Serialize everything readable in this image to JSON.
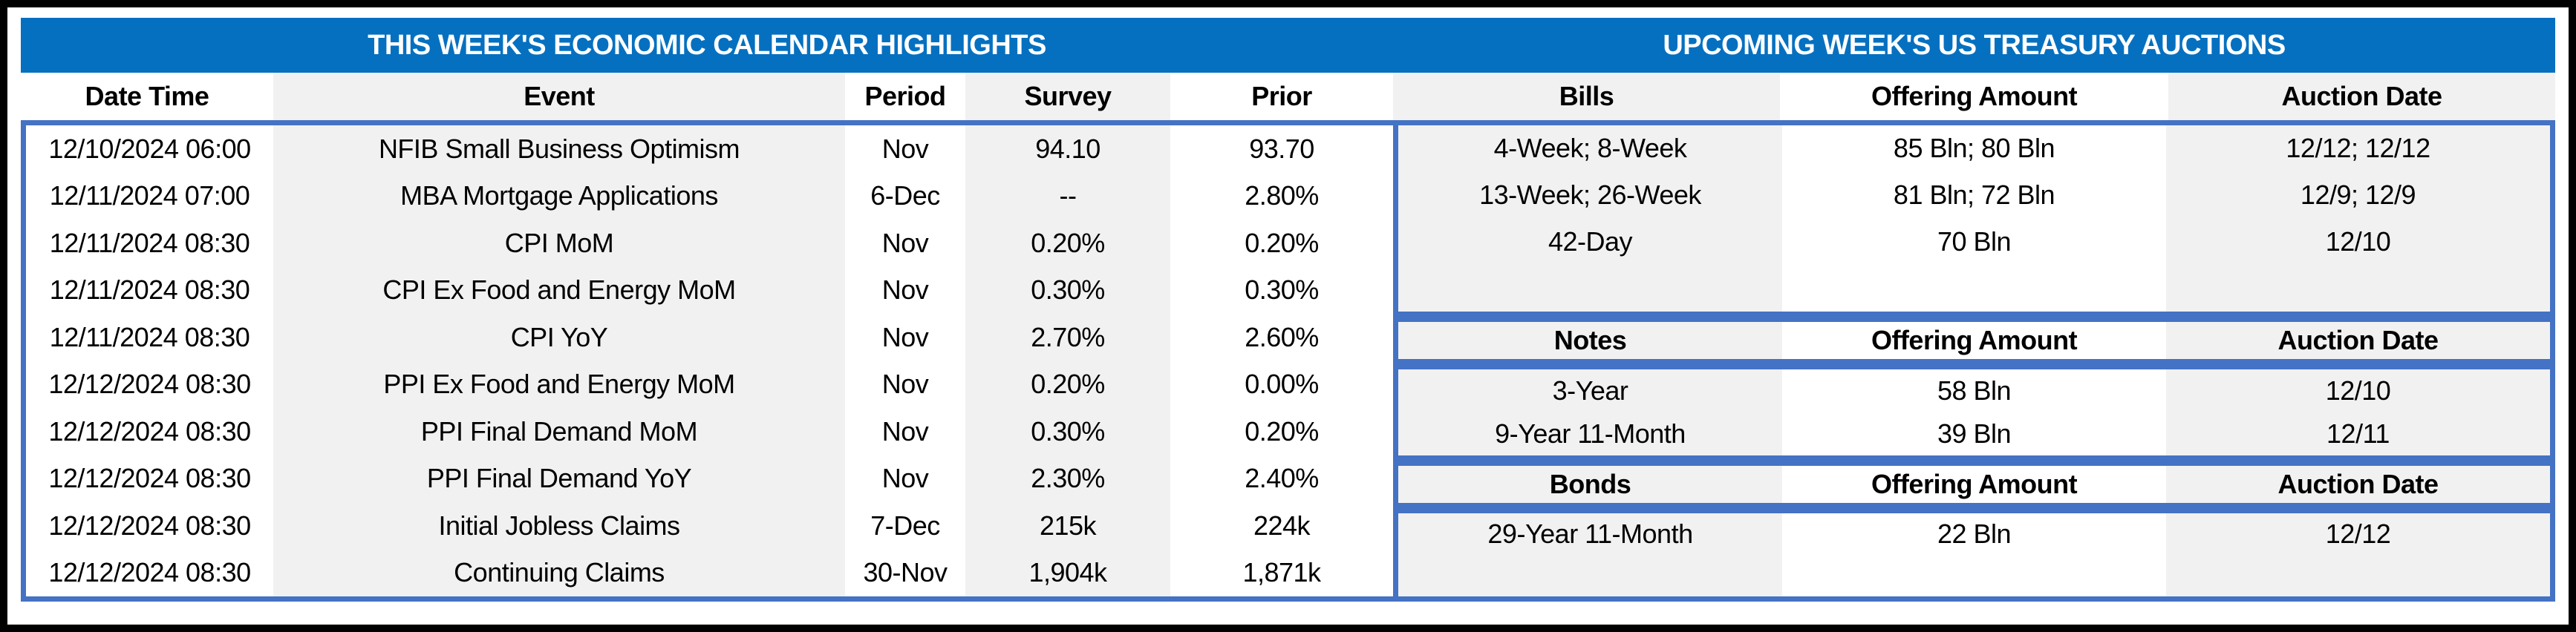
{
  "calendar": {
    "title": "THIS WEEK'S ECONOMIC CALENDAR HIGHLIGHTS",
    "columns": [
      "Date Time",
      "Event",
      "Period",
      "Survey",
      "Prior"
    ],
    "rows": [
      [
        "12/10/2024 06:00",
        "NFIB Small Business Optimism",
        "Nov",
        "94.10",
        "93.70"
      ],
      [
        "12/11/2024 07:00",
        "MBA Mortgage Applications",
        "6-Dec",
        "--",
        "2.80%"
      ],
      [
        "12/11/2024 08:30",
        "CPI MoM",
        "Nov",
        "0.20%",
        "0.20%"
      ],
      [
        "12/11/2024 08:30",
        "CPI Ex Food and Energy MoM",
        "Nov",
        "0.30%",
        "0.30%"
      ],
      [
        "12/11/2024 08:30",
        "CPI YoY",
        "Nov",
        "2.70%",
        "2.60%"
      ],
      [
        "12/12/2024 08:30",
        "PPI Ex Food and Energy MoM",
        "Nov",
        "0.20%",
        "0.00%"
      ],
      [
        "12/12/2024 08:30",
        "PPI Final Demand MoM",
        "Nov",
        "0.30%",
        "0.20%"
      ],
      [
        "12/12/2024 08:30",
        "PPI Final Demand YoY",
        "Nov",
        "2.30%",
        "2.40%"
      ],
      [
        "12/12/2024 08:30",
        "Initial Jobless Claims",
        "7-Dec",
        "215k",
        "224k"
      ],
      [
        "12/12/2024 08:30",
        "Continuing Claims",
        "30-Nov",
        "1,904k",
        "1,871k"
      ]
    ]
  },
  "auctions": {
    "title": "UPCOMING WEEK'S US TREASURY AUCTIONS",
    "sections": [
      {
        "header": [
          "Bills",
          "Offering Amount",
          "Auction Date"
        ],
        "rows": [
          [
            "4-Week; 8-Week",
            "85 Bln; 80 Bln",
            "12/12; 12/12"
          ],
          [
            "13-Week; 26-Week",
            "81 Bln; 72 Bln",
            "12/9; 12/9"
          ],
          [
            "42-Day",
            "70 Bln",
            "12/10"
          ]
        ]
      },
      {
        "header": [
          "Notes",
          "Offering Amount",
          "Auction Date"
        ],
        "rows": [
          [
            "3-Year",
            "58 Bln",
            "12/10"
          ],
          [
            "9-Year 11-Month",
            "39 Bln",
            "12/11"
          ]
        ]
      },
      {
        "header": [
          "Bonds",
          "Offering Amount",
          "Auction Date"
        ],
        "rows": [
          [
            "29-Year 11-Month",
            "22 Bln",
            "12/12"
          ]
        ]
      }
    ]
  },
  "colors": {
    "title_bar_blue": "#0670C0",
    "table_border_blue": "#4472C4",
    "column_stripe_gray": "#F1F1F1",
    "title_text_white": "#FFFFFF",
    "frame_black": "#000000"
  }
}
